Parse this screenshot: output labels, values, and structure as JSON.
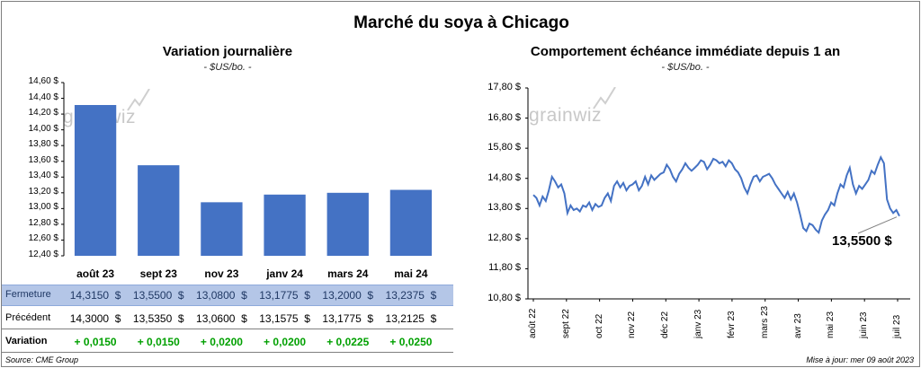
{
  "main_title": "Marché du soya à Chicago",
  "left": {
    "title": "Variation journalière",
    "unit": "- $US/bo. -",
    "watermark": "grainwiz",
    "table": {
      "row_labels": [
        "Fermeture",
        "Précédent",
        "Variation"
      ],
      "fermeture": [
        "14,3150  $",
        "13,5500  $",
        "13,0800  $",
        "13,1775  $",
        "13,2000  $",
        "13,2375  $"
      ],
      "precedent": [
        "14,3000  $",
        "13,5350  $",
        "13,0600  $",
        "13,1575  $",
        "13,1775  $",
        "13,2125  $"
      ],
      "variation": [
        "+ 0,0150",
        "+ 0,0150",
        "+ 0,0200",
        "+ 0,0200",
        "+ 0,0225",
        "+ 0,0250"
      ]
    }
  },
  "right": {
    "title": "Comportement  échéance immédiate depuis 1 an",
    "unit": "- $US/bo. -",
    "watermark": "grainwiz",
    "callout": "13,5500 $"
  },
  "footer": {
    "source": "Source: CME Group",
    "updated": "Mise à jour: mer 09 août 2023"
  },
  "colors": {
    "bar": "#4472c4",
    "line": "#4472c4",
    "fermeture_row": "#b4c6e7",
    "positive": "#00a000"
  },
  "chart_data": [
    {
      "type": "bar",
      "categories": [
        "août 23",
        "sept 23",
        "nov 23",
        "janv 24",
        "mars 24",
        "mai 24"
      ],
      "values": [
        14.315,
        13.55,
        13.08,
        13.1775,
        13.2,
        13.2375
      ],
      "ylim": [
        12.4,
        14.6
      ],
      "yticks": [
        "12,40 $",
        "12,60 $",
        "12,80 $",
        "13,00 $",
        "13,20 $",
        "13,40 $",
        "13,60 $",
        "13,80 $",
        "14,00 $",
        "14,20 $",
        "14,40 $",
        "14,60 $"
      ],
      "grid": false
    },
    {
      "type": "line",
      "x_labels": [
        "août 22",
        "sept 22",
        "oct 22",
        "nov 22",
        "déc 22",
        "janv 23",
        "févr 23",
        "mars 23",
        "avr 23",
        "mai 23",
        "juin 23",
        "juil 23"
      ],
      "ylim": [
        10.8,
        17.8
      ],
      "yticks": [
        "10,80 $",
        "11,80 $",
        "12,80 $",
        "13,80 $",
        "14,80 $",
        "15,80 $",
        "16,80 $",
        "17,80 $"
      ],
      "grid": false,
      "last_value": 13.55,
      "series": [
        {
          "values": [
            14.25,
            14.15,
            13.9,
            14.2,
            14.05,
            14.4,
            14.85,
            14.7,
            14.5,
            14.6,
            14.3,
            13.65,
            13.9,
            13.75,
            13.8,
            13.7,
            13.9,
            13.85,
            14.0,
            13.75,
            13.95,
            13.85,
            13.9,
            14.15,
            14.3,
            14.05,
            14.55,
            14.7,
            14.5,
            14.65,
            14.4,
            14.55,
            14.6,
            14.7,
            14.4,
            14.55,
            14.85,
            14.6,
            14.9,
            14.75,
            14.85,
            14.95,
            15.0,
            15.25,
            15.1,
            14.85,
            14.7,
            14.95,
            15.1,
            15.3,
            15.15,
            15.05,
            15.15,
            15.25,
            15.4,
            15.35,
            15.1,
            15.25,
            15.45,
            15.4,
            15.3,
            15.35,
            15.2,
            15.4,
            15.3,
            15.1,
            15.0,
            14.8,
            14.5,
            14.3,
            14.6,
            14.85,
            14.9,
            14.7,
            14.85,
            14.9,
            14.95,
            14.8,
            14.6,
            14.45,
            14.3,
            14.15,
            14.35,
            14.1,
            14.3,
            14.0,
            13.6,
            13.15,
            13.05,
            13.3,
            13.25,
            13.1,
            13.0,
            13.4,
            13.6,
            13.75,
            14.0,
            13.9,
            14.3,
            14.6,
            14.5,
            14.9,
            15.15,
            14.6,
            14.3,
            14.55,
            14.45,
            14.6,
            14.75,
            15.05,
            14.95,
            15.25,
            15.5,
            15.3,
            14.1,
            13.8,
            13.65,
            13.75,
            13.55
          ]
        }
      ]
    }
  ]
}
